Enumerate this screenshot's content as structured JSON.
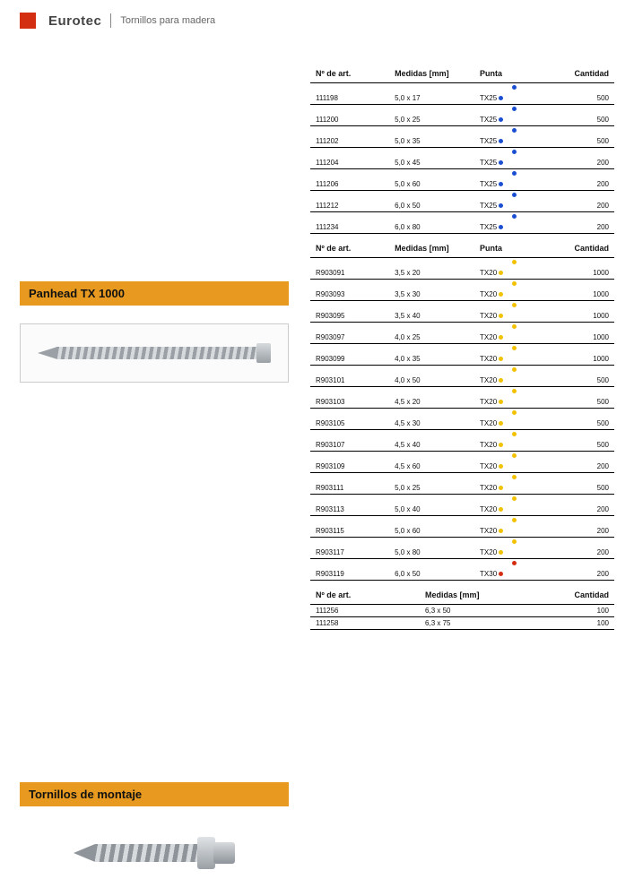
{
  "header": {
    "brand": "Eurotec",
    "subtitle": "Tornillos para madera"
  },
  "dotColors": {
    "blue": "#1b4fd1",
    "yellow": "#f2c200",
    "red": "#d42e12"
  },
  "sections": {
    "panhead": {
      "title": "Panhead TX 1000"
    },
    "montaje": {
      "title": "Tornillos de montaje"
    }
  },
  "columns": {
    "art": "Nº de art.",
    "med": "Medidas [mm]",
    "punta": "Punta",
    "qty": "Cantidad"
  },
  "table1": [
    {
      "art": "111198",
      "med": "5,0 x 17",
      "punta": "TX25",
      "dot": "blue",
      "qty": "500"
    },
    {
      "art": "111200",
      "med": "5,0 x 25",
      "punta": "TX25",
      "dot": "blue",
      "qty": "500"
    },
    {
      "art": "111202",
      "med": "5,0 x 35",
      "punta": "TX25",
      "dot": "blue",
      "qty": "500"
    },
    {
      "art": "111204",
      "med": "5,0 x 45",
      "punta": "TX25",
      "dot": "blue",
      "qty": "200"
    },
    {
      "art": "111206",
      "med": "5,0 x 60",
      "punta": "TX25",
      "dot": "blue",
      "qty": "200"
    },
    {
      "art": "111212",
      "med": "6,0 x 50",
      "punta": "TX25",
      "dot": "blue",
      "qty": "200"
    },
    {
      "art": "111234",
      "med": "6,0 x 80",
      "punta": "TX25",
      "dot": "blue",
      "qty": "200"
    }
  ],
  "table2": [
    {
      "art": "R903091",
      "med": "3,5 x 20",
      "punta": "TX20",
      "dot": "yellow",
      "qty": "1000"
    },
    {
      "art": "R903093",
      "med": "3,5 x 30",
      "punta": "TX20",
      "dot": "yellow",
      "qty": "1000"
    },
    {
      "art": "R903095",
      "med": "3,5 x 40",
      "punta": "TX20",
      "dot": "yellow",
      "qty": "1000"
    },
    {
      "art": "R903097",
      "med": "4,0 x 25",
      "punta": "TX20",
      "dot": "yellow",
      "qty": "1000"
    },
    {
      "art": "R903099",
      "med": "4,0 x 35",
      "punta": "TX20",
      "dot": "yellow",
      "qty": "1000"
    },
    {
      "art": "R903101",
      "med": "4,0 x 50",
      "punta": "TX20",
      "dot": "yellow",
      "qty": "500"
    },
    {
      "art": "R903103",
      "med": "4,5 x 20",
      "punta": "TX20",
      "dot": "yellow",
      "qty": "500"
    },
    {
      "art": "R903105",
      "med": "4,5 x 30",
      "punta": "TX20",
      "dot": "yellow",
      "qty": "500"
    },
    {
      "art": "R903107",
      "med": "4,5 x 40",
      "punta": "TX20",
      "dot": "yellow",
      "qty": "500"
    },
    {
      "art": "R903109",
      "med": "4,5 x 60",
      "punta": "TX20",
      "dot": "yellow",
      "qty": "200"
    },
    {
      "art": "R903111",
      "med": "5,0 x 25",
      "punta": "TX20",
      "dot": "yellow",
      "qty": "500"
    },
    {
      "art": "R903113",
      "med": "5,0 x 40",
      "punta": "TX20",
      "dot": "yellow",
      "qty": "200"
    },
    {
      "art": "R903115",
      "med": "5,0 x 60",
      "punta": "TX20",
      "dot": "yellow",
      "qty": "200"
    },
    {
      "art": "R903117",
      "med": "5,0 x 80",
      "punta": "TX20",
      "dot": "yellow",
      "qty": "200"
    },
    {
      "art": "R903119",
      "med": "6,0 x 50",
      "punta": "TX30",
      "dot": "red",
      "qty": "200"
    }
  ],
  "table3": [
    {
      "art": "111256",
      "med": "6,3 x 50",
      "qty": "100"
    },
    {
      "art": "111258",
      "med": "6,3 x 75",
      "qty": "100"
    }
  ]
}
